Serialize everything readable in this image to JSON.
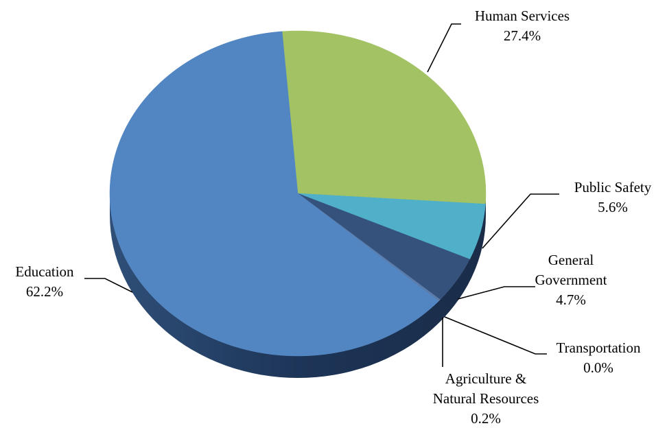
{
  "chart_data": {
    "type": "pie",
    "style": "3d",
    "slices": [
      {
        "name": "Human Services",
        "value": 27.4,
        "percent_label": "27.4%",
        "color": "#a2c264"
      },
      {
        "name": "Public Safety",
        "value": 5.6,
        "percent_label": "5.6%",
        "color": "#50afc9"
      },
      {
        "name": "General Government",
        "name_lines": [
          "General",
          "Government"
        ],
        "value": 4.7,
        "percent_label": "4.7%",
        "color": "#34527b"
      },
      {
        "name": "Transportation",
        "value": 0.0,
        "percent_label": "0.0%",
        "color": "#4f81bd"
      },
      {
        "name": "Agriculture & Natural Resources",
        "name_lines": [
          "Agriculture &",
          "Natural Resources"
        ],
        "value": 0.2,
        "percent_label": "0.2%",
        "color": "#5b7aa8"
      },
      {
        "name": "Education",
        "value": 62.2,
        "percent_label": "62.2%",
        "color": "#5286c2"
      }
    ]
  }
}
